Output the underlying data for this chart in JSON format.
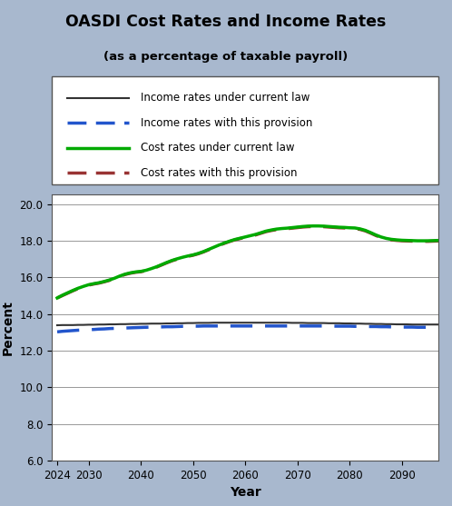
{
  "title": "OASDI Cost Rates and Income Rates",
  "subtitle": "(as a percentage of taxable payroll)",
  "xlabel": "Year",
  "ylabel": "Percent",
  "bg_color": "#a8b8ce",
  "plot_bg_color": "#ffffff",
  "ylim": [
    6.0,
    20.5
  ],
  "yticks": [
    6.0,
    8.0,
    10.0,
    12.0,
    14.0,
    16.0,
    18.0,
    20.0
  ],
  "xticks": [
    2024,
    2030,
    2040,
    2050,
    2060,
    2070,
    2080,
    2090
  ],
  "xlim": [
    2023,
    2097
  ],
  "years": [
    2024,
    2025,
    2026,
    2027,
    2028,
    2029,
    2030,
    2031,
    2032,
    2033,
    2034,
    2035,
    2036,
    2037,
    2038,
    2039,
    2040,
    2041,
    2042,
    2043,
    2044,
    2045,
    2046,
    2047,
    2048,
    2049,
    2050,
    2051,
    2052,
    2053,
    2054,
    2055,
    2056,
    2057,
    2058,
    2059,
    2060,
    2061,
    2062,
    2063,
    2064,
    2065,
    2066,
    2067,
    2068,
    2069,
    2070,
    2071,
    2072,
    2073,
    2074,
    2075,
    2076,
    2077,
    2078,
    2079,
    2080,
    2081,
    2082,
    2083,
    2084,
    2085,
    2086,
    2087,
    2088,
    2089,
    2090,
    2091,
    2092,
    2093,
    2094,
    2095,
    2096,
    2097
  ],
  "income_current_law": [
    13.38,
    13.39,
    13.39,
    13.39,
    13.4,
    13.4,
    13.41,
    13.41,
    13.42,
    13.42,
    13.43,
    13.43,
    13.44,
    13.44,
    13.45,
    13.45,
    13.46,
    13.46,
    13.47,
    13.47,
    13.47,
    13.48,
    13.48,
    13.49,
    13.49,
    13.5,
    13.5,
    13.51,
    13.51,
    13.51,
    13.52,
    13.52,
    13.52,
    13.52,
    13.52,
    13.52,
    13.52,
    13.52,
    13.52,
    13.52,
    13.52,
    13.52,
    13.52,
    13.52,
    13.52,
    13.51,
    13.51,
    13.51,
    13.5,
    13.5,
    13.5,
    13.5,
    13.49,
    13.49,
    13.49,
    13.48,
    13.48,
    13.47,
    13.47,
    13.46,
    13.46,
    13.45,
    13.45,
    13.44,
    13.44,
    13.43,
    13.43,
    13.43,
    13.42,
    13.42,
    13.42,
    13.42,
    13.42,
    13.42
  ],
  "income_provision": [
    13.02,
    13.05,
    13.07,
    13.09,
    13.11,
    13.12,
    13.14,
    13.15,
    13.17,
    13.18,
    13.2,
    13.21,
    13.22,
    13.23,
    13.24,
    13.25,
    13.26,
    13.27,
    13.28,
    13.28,
    13.29,
    13.3,
    13.3,
    13.31,
    13.32,
    13.32,
    13.33,
    13.33,
    13.34,
    13.34,
    13.34,
    13.34,
    13.34,
    13.34,
    13.34,
    13.34,
    13.34,
    13.34,
    13.34,
    13.34,
    13.34,
    13.34,
    13.34,
    13.34,
    13.34,
    13.34,
    13.34,
    13.34,
    13.34,
    13.34,
    13.34,
    13.34,
    13.34,
    13.33,
    13.33,
    13.33,
    13.33,
    13.32,
    13.32,
    13.31,
    13.31,
    13.31,
    13.3,
    13.3,
    13.29,
    13.29,
    13.28,
    13.28,
    13.28,
    13.27,
    13.27,
    13.27,
    13.27,
    13.27
  ],
  "cost_current_law": [
    14.87,
    15.02,
    15.15,
    15.28,
    15.4,
    15.5,
    15.59,
    15.65,
    15.7,
    15.77,
    15.85,
    15.95,
    16.07,
    16.17,
    16.24,
    16.29,
    16.32,
    16.38,
    16.47,
    16.57,
    16.69,
    16.81,
    16.92,
    17.01,
    17.09,
    17.16,
    17.22,
    17.3,
    17.4,
    17.52,
    17.64,
    17.76,
    17.87,
    17.97,
    18.06,
    18.13,
    18.2,
    18.27,
    18.34,
    18.43,
    18.52,
    18.58,
    18.63,
    18.66,
    18.68,
    18.71,
    18.74,
    18.77,
    18.79,
    18.8,
    18.8,
    18.79,
    18.77,
    18.75,
    18.73,
    18.72,
    18.7,
    18.69,
    18.64,
    18.56,
    18.44,
    18.31,
    18.2,
    18.12,
    18.07,
    18.04,
    18.02,
    18.01,
    18.0,
    17.99,
    17.99,
    17.99,
    18.0,
    18.01
  ],
  "cost_provision": [
    14.87,
    15.0,
    15.13,
    15.26,
    15.38,
    15.48,
    15.57,
    15.63,
    15.68,
    15.75,
    15.83,
    15.93,
    16.05,
    16.15,
    16.22,
    16.27,
    16.3,
    16.36,
    16.45,
    16.55,
    16.67,
    16.79,
    16.9,
    16.99,
    17.07,
    17.14,
    17.2,
    17.28,
    17.38,
    17.5,
    17.62,
    17.74,
    17.85,
    17.95,
    18.04,
    18.11,
    18.17,
    18.24,
    18.31,
    18.4,
    18.49,
    18.55,
    18.6,
    18.63,
    18.65,
    18.68,
    18.71,
    18.74,
    18.76,
    18.77,
    18.77,
    18.76,
    18.74,
    18.72,
    18.7,
    18.69,
    18.67,
    18.66,
    18.61,
    18.53,
    18.41,
    18.28,
    18.17,
    18.09,
    18.04,
    18.01,
    17.99,
    17.98,
    17.97,
    17.96,
    17.96,
    17.96,
    17.97,
    17.98
  ],
  "income_current_law_color": "#333333",
  "income_provision_color": "#2255cc",
  "cost_current_law_color": "#00aa00",
  "cost_provision_color": "#993333",
  "legend_labels": [
    "Income rates under current law",
    "Income rates with this provision",
    "Cost rates under current law",
    "Cost rates with this provision"
  ]
}
